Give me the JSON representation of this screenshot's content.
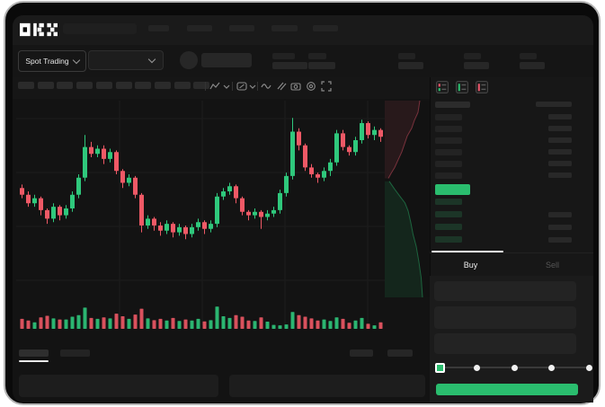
{
  "brand": {
    "logo_text": "OKX"
  },
  "colors": {
    "accent_green": "#2abd6e",
    "candle_green": "#2fc87c",
    "candle_red": "#ef5966",
    "depth_ask": "#e8556a",
    "depth_bid": "#2abd6e",
    "grid": "#1d1d1d"
  },
  "header": {
    "nav_items": 5,
    "stat_groups": 5
  },
  "market_selector": {
    "label": "Spot Trading"
  },
  "toolbar": {
    "timeframe_buttons": 10,
    "icons": [
      "zigzag-chart",
      "chevron-down",
      "indicators",
      "chevron-down",
      "wave",
      "draw-lines",
      "camera",
      "settings",
      "fullscreen"
    ]
  },
  "order_book": {
    "view_icons": [
      "combined-book",
      "bids-only",
      "asks-only"
    ],
    "ask_rows": 6,
    "bid_rows": 4,
    "bid_right_bars": 3
  },
  "order_panel": {
    "tabs": [
      {
        "label": "Buy",
        "active": true
      },
      {
        "label": "Sell",
        "active": false
      }
    ],
    "fields": 3,
    "slider_dots": 5,
    "buy_button_label": ""
  },
  "chart_data": {
    "type": "candlestick_with_volume_and_depth",
    "title": "",
    "xlabel": "",
    "ylabel": "",
    "price_scale": [
      0,
      100
    ],
    "grid": true,
    "candles": [
      [
        52,
        54,
        46,
        48
      ],
      [
        48,
        50,
        41,
        43
      ],
      [
        43,
        48,
        41,
        46
      ],
      [
        46,
        47,
        36,
        39
      ],
      [
        39,
        40,
        31,
        34
      ],
      [
        34,
        43,
        32,
        41
      ],
      [
        41,
        42,
        33,
        36
      ],
      [
        36,
        42,
        34,
        40
      ],
      [
        40,
        50,
        38,
        48
      ],
      [
        48,
        60,
        46,
        58
      ],
      [
        58,
        83,
        56,
        76
      ],
      [
        76,
        79,
        70,
        72
      ],
      [
        72,
        77,
        70,
        75
      ],
      [
        75,
        77,
        66,
        69
      ],
      [
        69,
        75,
        67,
        73
      ],
      [
        73,
        74,
        60,
        62
      ],
      [
        62,
        63,
        52,
        55
      ],
      [
        55,
        60,
        53,
        58
      ],
      [
        58,
        59,
        46,
        48
      ],
      [
        48,
        49,
        26,
        30
      ],
      [
        30,
        36,
        28,
        34
      ],
      [
        34,
        35,
        27,
        30
      ],
      [
        30,
        32,
        24,
        27
      ],
      [
        27,
        33,
        25,
        31
      ],
      [
        31,
        32,
        23,
        26
      ],
      [
        26,
        31,
        24,
        29
      ],
      [
        29,
        30,
        22,
        25
      ],
      [
        25,
        31,
        23,
        29
      ],
      [
        29,
        34,
        27,
        32
      ],
      [
        32,
        33,
        25,
        28
      ],
      [
        28,
        33,
        26,
        31
      ],
      [
        31,
        49,
        29,
        47
      ],
      [
        47,
        52,
        45,
        50
      ],
      [
        50,
        55,
        48,
        53
      ],
      [
        53,
        54,
        43,
        46
      ],
      [
        46,
        47,
        36,
        38
      ],
      [
        38,
        39,
        33,
        36
      ],
      [
        36,
        40,
        34,
        38
      ],
      [
        38,
        39,
        28,
        35
      ],
      [
        35,
        39,
        33,
        37
      ],
      [
        37,
        41,
        35,
        39
      ],
      [
        39,
        51,
        37,
        49
      ],
      [
        49,
        61,
        47,
        59
      ],
      [
        59,
        93,
        57,
        85
      ],
      [
        85,
        87,
        74,
        77
      ],
      [
        77,
        78,
        62,
        64
      ],
      [
        64,
        66,
        58,
        60
      ],
      [
        60,
        61,
        55,
        58
      ],
      [
        58,
        64,
        56,
        62
      ],
      [
        62,
        69,
        59,
        67
      ],
      [
        67,
        86,
        65,
        84
      ],
      [
        84,
        86,
        74,
        76
      ],
      [
        76,
        77,
        71,
        73
      ],
      [
        73,
        82,
        71,
        80
      ],
      [
        80,
        92,
        78,
        90
      ],
      [
        90,
        91,
        81,
        83
      ],
      [
        83,
        88,
        80,
        86
      ],
      [
        86,
        87,
        79,
        82
      ]
    ],
    "volume": [
      38,
      30,
      22,
      45,
      52,
      40,
      35,
      35,
      48,
      55,
      90,
      42,
      38,
      45,
      40,
      62,
      50,
      38,
      58,
      85,
      40,
      32,
      38,
      30,
      42,
      28,
      35,
      30,
      38,
      26,
      32,
      95,
      50,
      42,
      55,
      48,
      30,
      28,
      45,
      25,
      10,
      8,
      12,
      70,
      55,
      48,
      40,
      30,
      35,
      28,
      45,
      38,
      20,
      30,
      42,
      15,
      8,
      22
    ],
    "depth_profile": {
      "asks": [
        [
          0,
          0.78
        ],
        [
          0.06,
          0.74
        ],
        [
          0.1,
          0.66
        ],
        [
          0.14,
          0.6
        ],
        [
          0.18,
          0.5
        ],
        [
          0.22,
          0.44
        ],
        [
          0.26,
          0.38
        ],
        [
          0.3,
          0.3
        ],
        [
          0.34,
          0.22
        ],
        [
          0.37,
          0.14
        ],
        [
          0.395,
          0.08
        ]
      ],
      "bids": [
        [
          0.41,
          0.1
        ],
        [
          0.45,
          0.22
        ],
        [
          0.49,
          0.35
        ],
        [
          0.52,
          0.45
        ],
        [
          0.56,
          0.52
        ],
        [
          0.62,
          0.58
        ],
        [
          0.68,
          0.63
        ],
        [
          0.74,
          0.7
        ],
        [
          0.82,
          0.76
        ],
        [
          0.9,
          0.81
        ],
        [
          1.0,
          0.84
        ]
      ]
    }
  }
}
